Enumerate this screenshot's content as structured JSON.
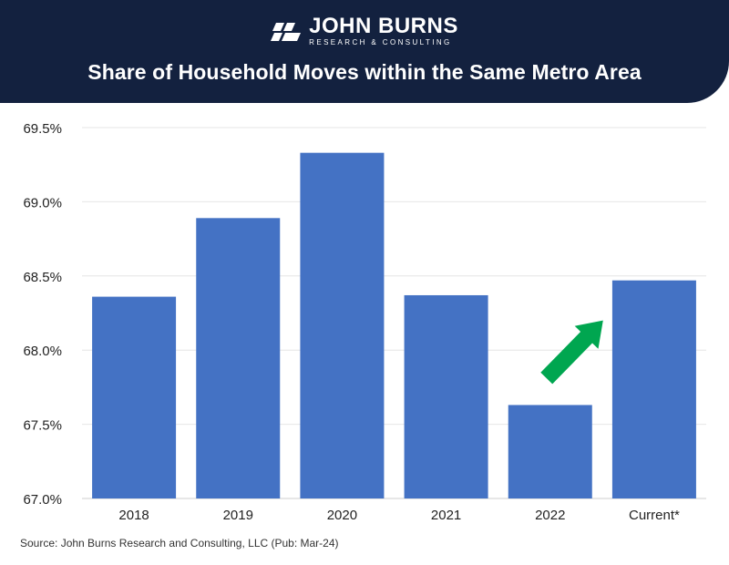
{
  "brand": {
    "name": "JOHN BURNS",
    "subtitle": "RESEARCH & CONSULTING",
    "header_color": "#13213f"
  },
  "title": "Share of Household Moves within the Same Metro Area",
  "source": "Source: John Burns Research and Consulting, LLC (Pub: Mar-24)",
  "colors": {
    "bar": "#4472c4",
    "arrow": "#00a650",
    "grid": "#e6e6e6"
  },
  "icons": {
    "logo": "jb-logo-icon",
    "trend": "up-right-arrow-icon"
  },
  "chart_data": {
    "type": "bar",
    "categories": [
      "2018",
      "2019",
      "2020",
      "2021",
      "2022",
      "Current*"
    ],
    "values": [
      68.36,
      68.89,
      69.33,
      68.37,
      67.63,
      68.47
    ],
    "title": "Share of Household Moves within the Same Metro Area",
    "xlabel": "",
    "ylabel": "",
    "ylim": [
      67.0,
      69.5
    ],
    "yticks": [
      "69.5%",
      "69.0%",
      "68.5%",
      "68.0%",
      "67.5%",
      "67.0%"
    ],
    "grid": true,
    "legend": "none",
    "annotation": "up-right-arrow-icon"
  }
}
